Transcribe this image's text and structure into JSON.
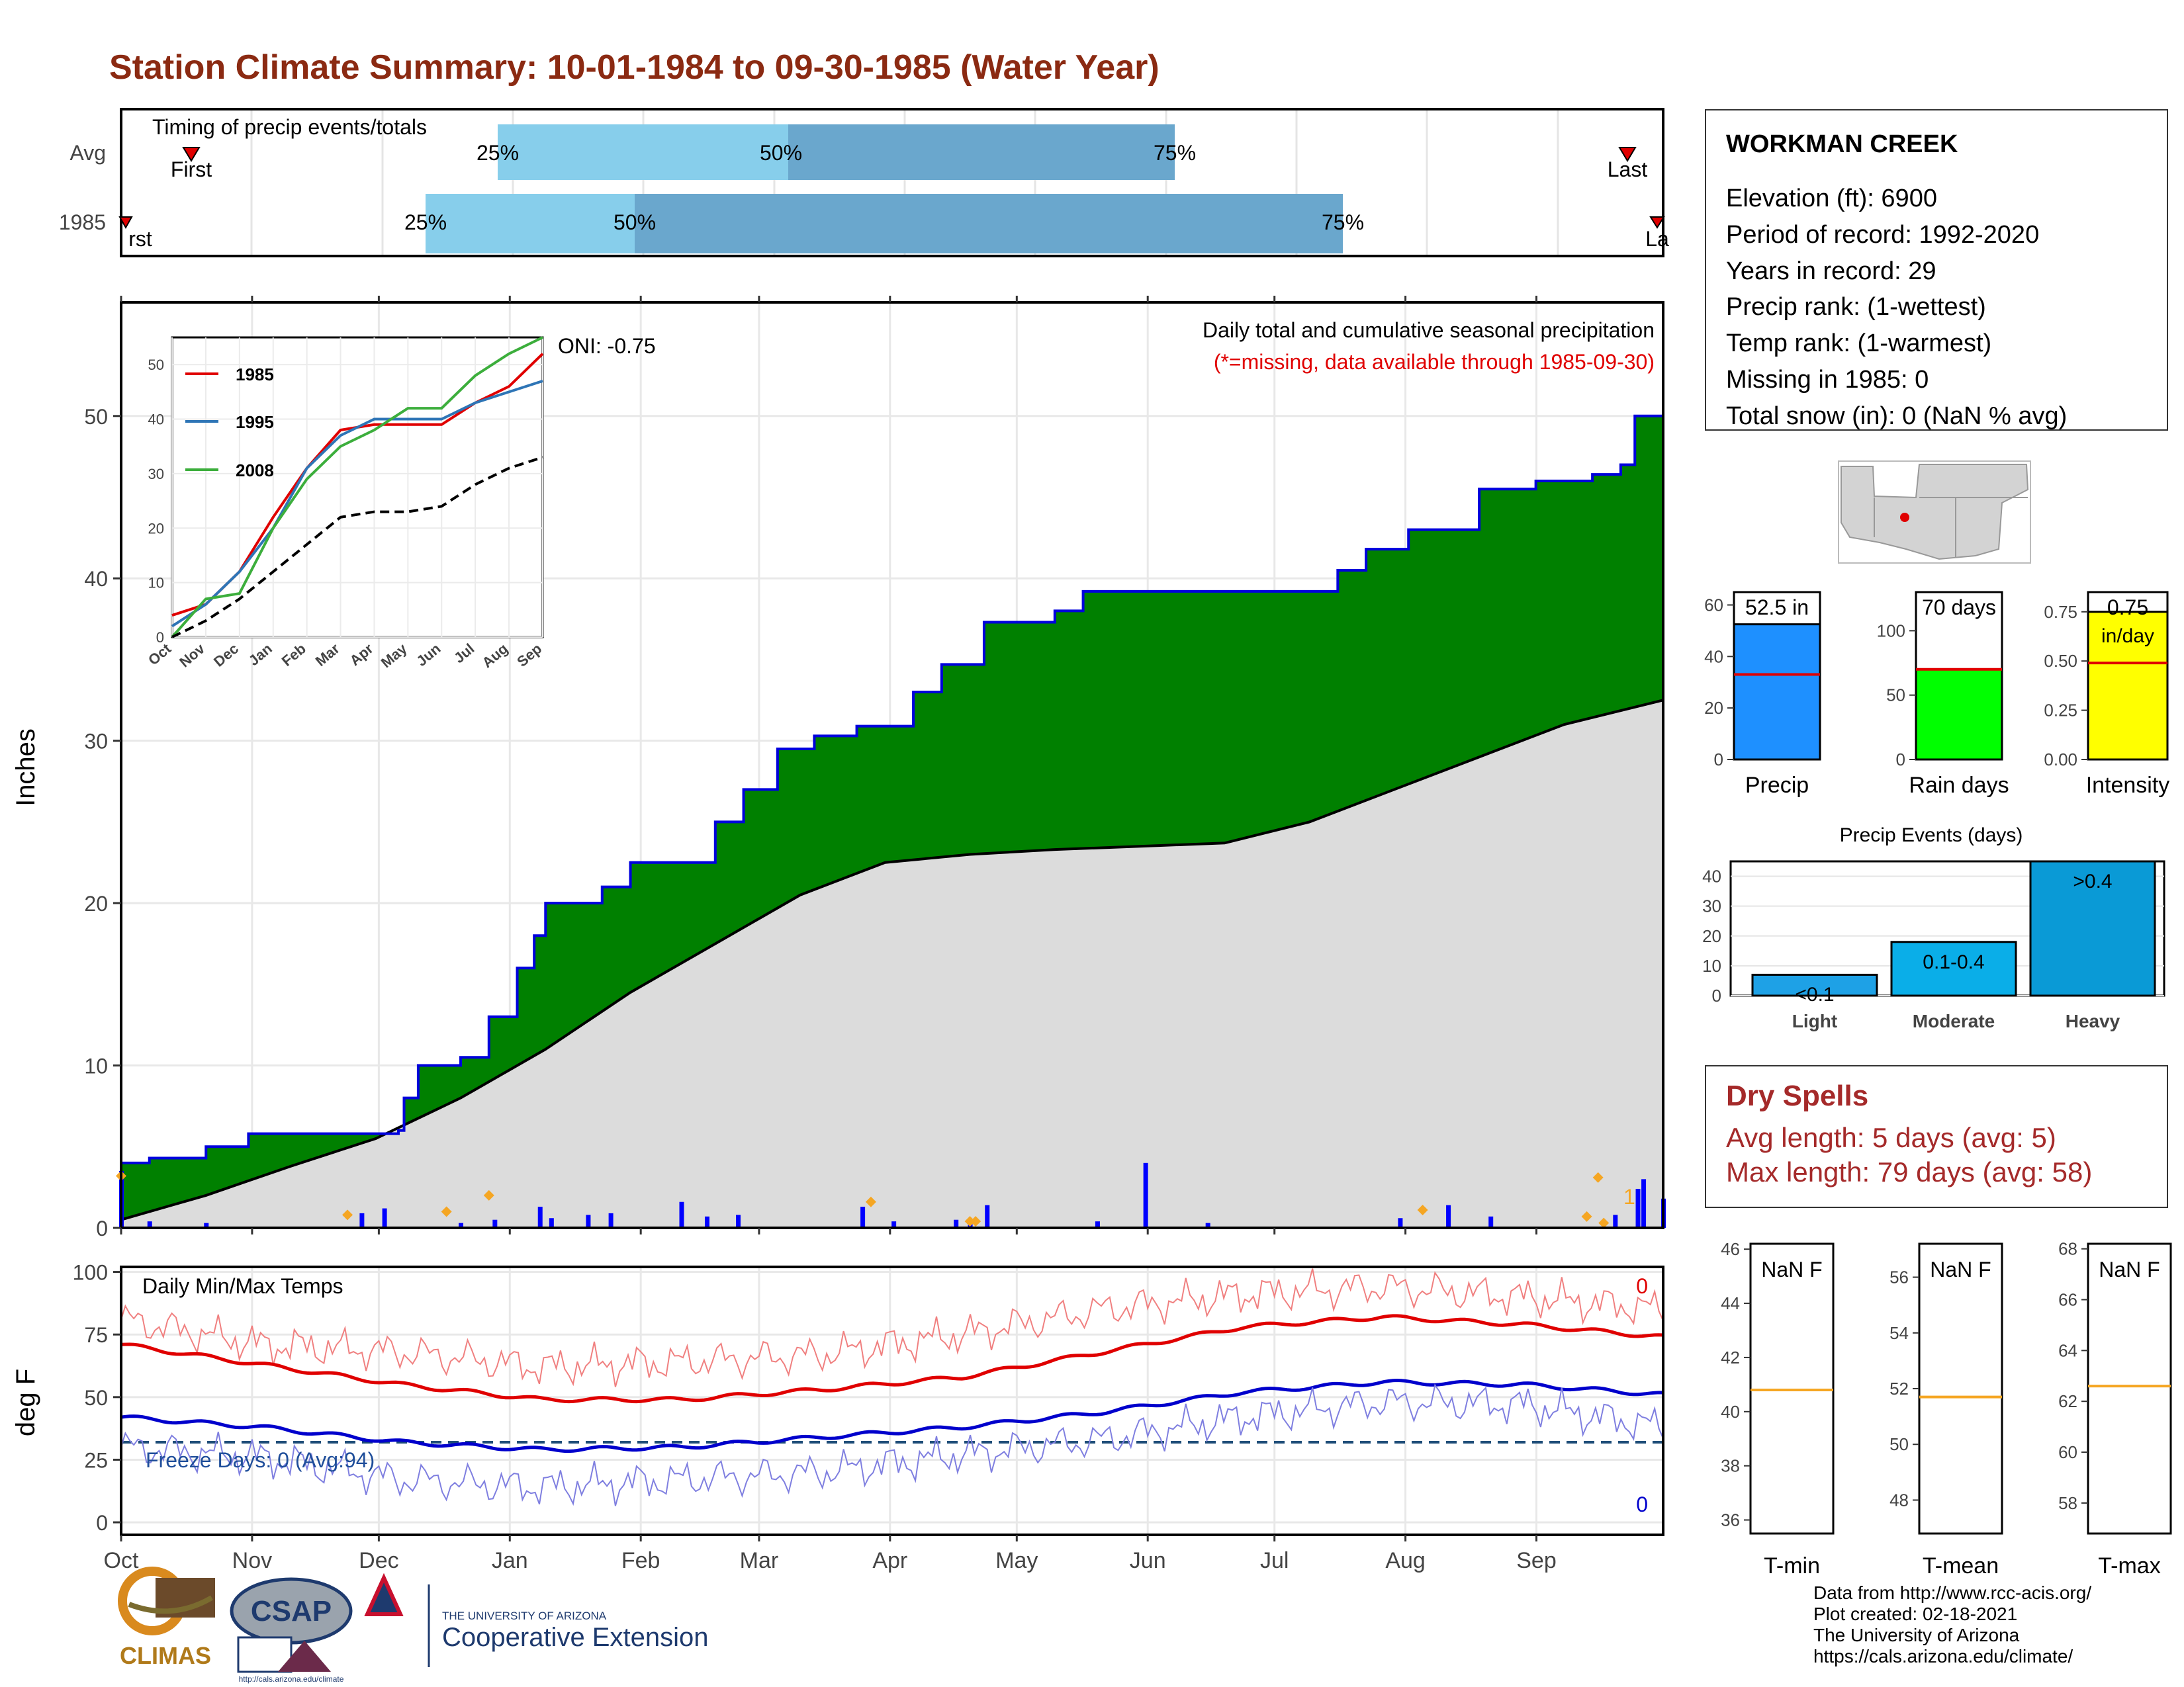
{
  "title": "Station Climate Summary: 10-01-1984 to 09-30-1985 (Water Year)",
  "station": {
    "name": "WORKMAN CREEK",
    "lines": [
      "Elevation (ft): 6900",
      "Period of record: 1992-2020",
      "Years in record: 29",
      "Precip rank:  (1-wettest)",
      "Temp rank:  (1-warmest)",
      "Missing in 1985: 0",
      "Total snow (in): 0 (NaN % avg)"
    ]
  },
  "timing": {
    "label": "Timing of precip events/totals",
    "rows": [
      {
        "name": "Avg",
        "first": "First",
        "last": "Last",
        "p25": "25%",
        "p50": "50%",
        "p75": "75%"
      },
      {
        "name": "1985",
        "first": "rst",
        "last": "La",
        "p25": "25%",
        "p50": "50%",
        "p75": "75%"
      }
    ]
  },
  "main": {
    "ylabel": "Inches",
    "oni": "ONI: -0.75",
    "subtitle": "Daily total and cumulative seasonal precipitation",
    "missing_note": "(*=missing, data available through 1985-09-30)",
    "count_label": "1",
    "yticks": [
      "0",
      "10",
      "20",
      "30",
      "40",
      "50"
    ]
  },
  "months": [
    "Oct",
    "Nov",
    "Dec",
    "Jan",
    "Feb",
    "Mar",
    "Apr",
    "May",
    "Jun",
    "Jul",
    "Aug",
    "Sep"
  ],
  "inset": {
    "legend": [
      "1985",
      "1995",
      "2008"
    ],
    "yticks": [
      "0",
      "10",
      "20",
      "30",
      "40",
      "50"
    ],
    "months": [
      "Oct",
      "Nov",
      "Dec",
      "Jan",
      "Feb",
      "Mar",
      "Apr",
      "May",
      "Jun",
      "Jul",
      "Aug",
      "Sep"
    ]
  },
  "summary_bars": [
    {
      "label": "Precip",
      "value_label": "52.5 in",
      "yticks": [
        "0",
        "20",
        "40",
        "60"
      ]
    },
    {
      "label": "Rain days",
      "value_label": "70 days",
      "yticks": [
        "0",
        "50",
        "100"
      ]
    },
    {
      "label": "Intensity",
      "value_label": "0.75",
      "unit": "in/day",
      "yticks": [
        "0.00",
        "0.25",
        "0.50",
        "0.75"
      ]
    }
  ],
  "events": {
    "title": "Precip Events (days)",
    "yticks": [
      "0",
      "10",
      "20",
      "30",
      "40"
    ],
    "categories": [
      "Light",
      "Moderate",
      "Heavy"
    ],
    "bar_labels": [
      "<0.1",
      "0.1-0.4",
      ">0.4"
    ]
  },
  "dry_spells": {
    "title": "Dry Spells",
    "avg": "Avg length: 5 days (avg: 5)",
    "max": "Max length: 79 days (avg: 58)"
  },
  "temps": {
    "ylabel": "deg F",
    "label": "Daily Min/Max Temps",
    "freeze": "Freeze Days: 0 (Avg:94)",
    "count_max": "0",
    "count_min": "0",
    "yticks": [
      "0",
      "25",
      "50",
      "75",
      "100"
    ]
  },
  "temp_boxes": [
    {
      "label": "T-min",
      "value": "NaN F",
      "yticks": [
        "36",
        "38",
        "40",
        "42",
        "44",
        "46"
      ]
    },
    {
      "label": "T-mean",
      "value": "NaN F",
      "yticks": [
        "48",
        "50",
        "52",
        "54",
        "56"
      ]
    },
    {
      "label": "T-max",
      "value": "NaN F",
      "yticks": [
        "58",
        "60",
        "62",
        "64",
        "66",
        "68"
      ]
    }
  ],
  "credits": [
    "Data from http://www.rcc-acis.org/",
    "Plot created: 02-18-2021",
    "The University of Arizona",
    "https://cals.arizona.edu/climate/"
  ],
  "logos": {
    "climas": "CLIMAS",
    "csap": "CSAP",
    "csap_url": "http://cals.arizona.edu/climate",
    "ua_small": "THE UNIVERSITY OF ARIZONA",
    "ua_big": "Cooperative Extension"
  },
  "chart_data": [
    {
      "type": "area",
      "title": "Daily total and cumulative seasonal precipitation",
      "ylabel": "Inches",
      "ylim": [
        0,
        57
      ],
      "x_unit": "day of water year",
      "series": [
        {
          "name": "1985",
          "points": [
            [
              0,
              4.0
            ],
            [
              10,
              4.3
            ],
            [
              30,
              5.0
            ],
            [
              45,
              5.8
            ],
            [
              80,
              5.8
            ],
            [
              98,
              6.0
            ],
            [
              100,
              8.0
            ],
            [
              105,
              10.0
            ],
            [
              120,
              10.5
            ],
            [
              130,
              13.0
            ],
            [
              140,
              16.0
            ],
            [
              146,
              18.0
            ],
            [
              150,
              20.0
            ],
            [
              170,
              21.0
            ],
            [
              180,
              22.5
            ],
            [
              195,
              22.5
            ],
            [
              210,
              25.0
            ],
            [
              220,
              27.0
            ],
            [
              232,
              29.5
            ],
            [
              245,
              30.3
            ],
            [
              260,
              30.9
            ],
            [
              280,
              33.0
            ],
            [
              290,
              34.7
            ],
            [
              305,
              37.3
            ],
            [
              330,
              38.0
            ],
            [
              340,
              39.2
            ],
            [
              365,
              39.2
            ],
            [
              380,
              39.2
            ],
            [
              390,
              39.2
            ],
            [
              400,
              39.2
            ],
            [
              410,
              39.2
            ],
            [
              430,
              40.5
            ],
            [
              440,
              41.8
            ],
            [
              455,
              43.0
            ],
            [
              480,
              45.5
            ],
            [
              500,
              46.0
            ],
            [
              520,
              46.4
            ],
            [
              530,
              47.0
            ],
            [
              535,
              50.0
            ],
            [
              545,
              52.5
            ]
          ]
        },
        {
          "name": "Average",
          "points": [
            [
              0,
              0.5
            ],
            [
              30,
              2.0
            ],
            [
              60,
              3.8
            ],
            [
              90,
              5.5
            ],
            [
              120,
              8.0
            ],
            [
              150,
              11.0
            ],
            [
              180,
              14.5
            ],
            [
              210,
              17.5
            ],
            [
              240,
              20.5
            ],
            [
              270,
              22.5
            ],
            [
              300,
              23.0
            ],
            [
              330,
              23.3
            ],
            [
              360,
              23.5
            ],
            [
              390,
              23.7
            ],
            [
              420,
              25.0
            ],
            [
              450,
              27.0
            ],
            [
              480,
              29.0
            ],
            [
              510,
              31.0
            ],
            [
              545,
              32.5
            ]
          ]
        }
      ],
      "daily_bars": [
        [
          0,
          3.5
        ],
        [
          10,
          0.4
        ],
        [
          30,
          0.3
        ],
        [
          85,
          0.9
        ],
        [
          93,
          1.2
        ],
        [
          120,
          0.3
        ],
        [
          132,
          0.5
        ],
        [
          148,
          1.3
        ],
        [
          152,
          0.6
        ],
        [
          165,
          0.8
        ],
        [
          173,
          0.9
        ],
        [
          198,
          1.6
        ],
        [
          207,
          0.7
        ],
        [
          218,
          0.8
        ],
        [
          262,
          1.3
        ],
        [
          273,
          0.4
        ],
        [
          295,
          0.5
        ],
        [
          300,
          0.5
        ],
        [
          306,
          1.4
        ],
        [
          345,
          0.4
        ],
        [
          362,
          4.0
        ],
        [
          384,
          0.3
        ],
        [
          452,
          0.6
        ],
        [
          469,
          1.4
        ],
        [
          484,
          0.7
        ],
        [
          528,
          0.8
        ],
        [
          536,
          2.4
        ],
        [
          538,
          3.0
        ],
        [
          545,
          1.8
        ]
      ]
    },
    {
      "type": "line",
      "title": "Cumulative precipitation analog years",
      "x": [
        "Oct",
        "Nov",
        "Dec",
        "Jan",
        "Feb",
        "Mar",
        "Apr",
        "May",
        "Jun",
        "Jul",
        "Aug",
        "Sep"
      ],
      "ylim": [
        0,
        55
      ],
      "series": [
        {
          "name": "1985",
          "values": [
            4,
            6,
            12,
            22,
            31,
            38,
            39,
            39,
            39,
            43,
            46,
            52
          ]
        },
        {
          "name": "1995",
          "values": [
            2,
            6,
            12,
            20,
            31,
            37,
            40,
            40,
            40,
            43,
            45,
            47
          ]
        },
        {
          "name": "2008",
          "values": [
            0,
            7,
            8,
            20,
            29,
            35,
            38,
            42,
            42,
            48,
            52,
            55
          ]
        },
        {
          "values": [
            0,
            3,
            7,
            12,
            17,
            22,
            23,
            23,
            24,
            28,
            31,
            33
          ]
        }
      ]
    },
    {
      "type": "bar",
      "categories": [
        "Precip",
        "Rain days",
        "Intensity"
      ],
      "values": [
        52.5,
        70,
        0.75
      ],
      "averages": [
        33,
        70,
        0.49
      ]
    },
    {
      "type": "bar",
      "title": "Precip Events (days)",
      "categories": [
        "Light",
        "Moderate",
        "Heavy"
      ],
      "values": [
        7,
        18,
        45
      ],
      "ylim": [
        0,
        45
      ]
    },
    {
      "type": "line",
      "title": "Daily Min/Max Temps",
      "ylabel": "deg F",
      "ylim": [
        -5,
        102
      ],
      "x": [
        "Oct",
        "Nov",
        "Dec",
        "Jan",
        "Feb",
        "Mar",
        "Apr",
        "May",
        "Jun",
        "Jul",
        "Aug",
        "Sep"
      ],
      "series": [
        {
          "values": [
            81,
            71,
            68,
            62,
            64,
            67,
            75,
            85,
            91,
            94,
            90,
            85
          ]
        },
        {
          "values": [
            71,
            63,
            55,
            49,
            49,
            53,
            58,
            68,
            78,
            82,
            79,
            74
          ]
        },
        {
          "values": [
            42,
            38,
            32,
            29,
            30,
            34,
            38,
            44,
            52,
            56,
            55,
            51
          ]
        },
        {
          "values": [
            30,
            26,
            17,
            14,
            17,
            20,
            27,
            33,
            42,
            48,
            47,
            38
          ]
        }
      ],
      "freeze_line": 32
    }
  ]
}
